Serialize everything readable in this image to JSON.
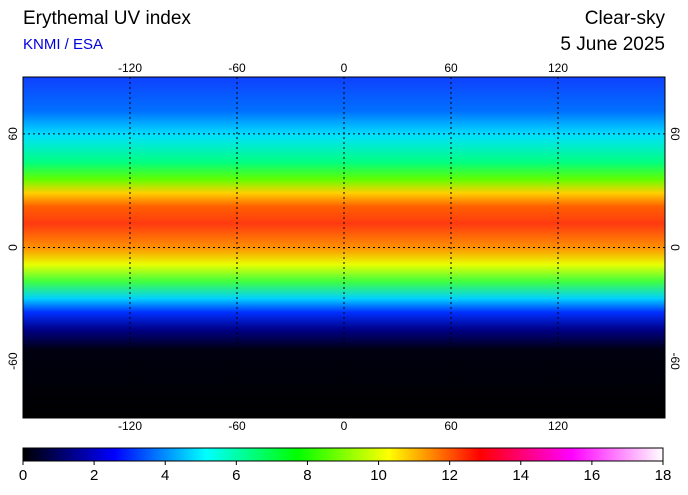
{
  "title": "Erythemal UV index",
  "source": "KNMI / ESA",
  "condition": "Clear-sky",
  "date": "5 June 2025",
  "map": {
    "xlim": [
      -180,
      180
    ],
    "ylim": [
      -90,
      90
    ],
    "xticks": [
      -120,
      -60,
      0,
      60,
      120
    ],
    "yticks": [
      -60,
      0,
      60
    ]
  },
  "colorbar": {
    "lim": [
      0,
      18
    ],
    "ticks": [
      0,
      2,
      4,
      6,
      8,
      10,
      12,
      14,
      16,
      18
    ],
    "colors": [
      "#000000",
      "#00007f",
      "#0000ff",
      "#0080ff",
      "#00ffff",
      "#00ff80",
      "#00ff00",
      "#80ff00",
      "#ffff00",
      "#ff8000",
      "#ff0000",
      "#ff0080",
      "#ff00ff",
      "#ff80ff",
      "#ffffff"
    ]
  }
}
